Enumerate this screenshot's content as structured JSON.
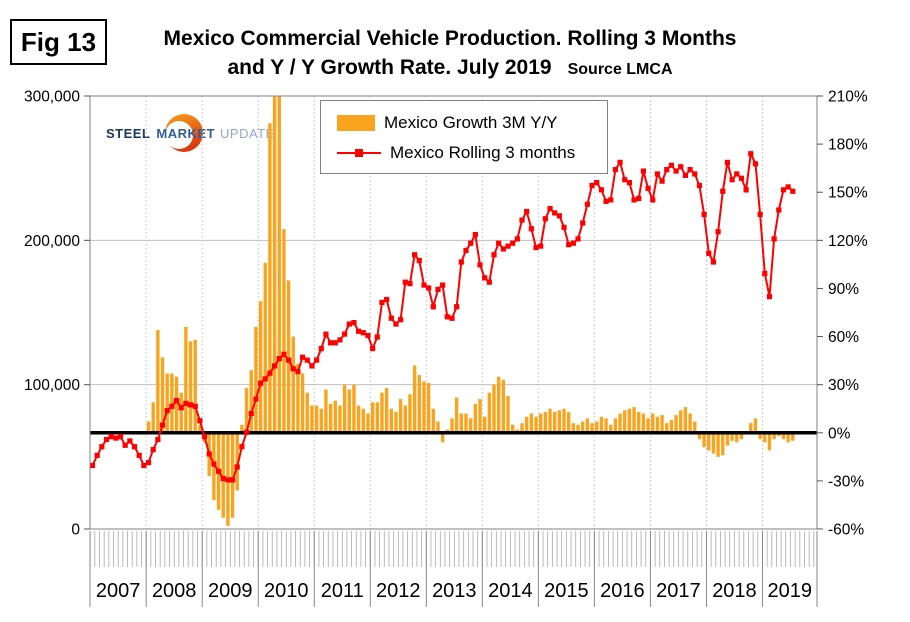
{
  "fig_label": "Fig 13",
  "title": {
    "line1": "Mexico Commercial Vehicle Production. Rolling 3 Months",
    "line2": "and Y / Y Growth Rate. July 2019",
    "source": "Source LMCA"
  },
  "logo": {
    "word1": "STEEL",
    "word2": "MARKET",
    "word3": "UPDATE"
  },
  "legend": {
    "items": [
      {
        "label": "Mexico Growth 3M Y/Y",
        "marker": "bar-swatch",
        "color": "#F9A41C"
      },
      {
        "label": "Mexico Rolling 3 months",
        "marker": "line-square",
        "color": "#FF0000"
      }
    ]
  },
  "colors": {
    "bar": "#F9A41C",
    "line": "#FF0000",
    "grid": "#BFBFBF",
    "axis": "#808080",
    "tick": "#808080",
    "zero_line": "#000000",
    "text": "#000000",
    "logo_orange": "#F9A11B",
    "logo_red": "#D93A0F"
  },
  "chart_data": {
    "type": "bar+line combo",
    "x_start": "2007-01",
    "x_end": "2019-07",
    "months_per_year": 12,
    "year_labels": [
      "2007",
      "2008",
      "2009",
      "2010",
      "2011",
      "2012",
      "2013",
      "2014",
      "2015",
      "2016",
      "2017",
      "2018",
      "2019"
    ],
    "left_axis": {
      "ticks": [
        "0",
        "100,000",
        "200,000",
        "300,000"
      ],
      "min": 0,
      "max": 300000,
      "applies_to": "Mexico Rolling 3 months (units)"
    },
    "right_axis": {
      "ticks": [
        "-60%",
        "-30%",
        "0%",
        "30%",
        "60%",
        "90%",
        "120%",
        "150%",
        "180%",
        "210%"
      ],
      "min": -60,
      "max": 210,
      "applies_to": "Mexico Growth 3M Y/Y (percent)"
    },
    "grid": {
      "horizontal_left_ticks": true,
      "vertical_year_separators": "dotted",
      "zero_line_bold": true
    },
    "legend_position": "top-center-inside",
    "series": [
      {
        "name": "Mexico Growth 3M Y/Y",
        "type": "bar",
        "axis": "right",
        "unit": "%",
        "color": "#F9A41C",
        "values": [
          null,
          null,
          null,
          null,
          null,
          null,
          null,
          null,
          null,
          null,
          null,
          null,
          7,
          19,
          64,
          47,
          37,
          37,
          35,
          25,
          66,
          57,
          58,
          5,
          -6,
          -27,
          -42,
          -48,
          -53,
          -58,
          -53,
          -36,
          5,
          28,
          39,
          66,
          82,
          106,
          193,
          213,
          213,
          127,
          95,
          60,
          43,
          37,
          25,
          17,
          17,
          15,
          27,
          18,
          20,
          17,
          30,
          27,
          30,
          17,
          15,
          12,
          19,
          19,
          25,
          28,
          15,
          13,
          21,
          17,
          24,
          42,
          36,
          32,
          31,
          15,
          7,
          -6,
          2,
          9,
          22,
          12,
          12,
          9,
          18,
          21,
          10,
          25,
          30,
          35,
          33,
          23,
          5,
          2,
          6,
          10,
          12,
          10,
          12,
          13,
          15,
          13,
          14,
          15,
          13,
          6,
          5,
          7,
          9,
          6,
          7,
          10,
          9,
          5,
          9,
          12,
          14,
          15,
          16,
          13,
          12,
          9,
          12,
          10,
          11,
          6,
          8,
          11,
          14,
          16,
          12,
          7,
          -4,
          -9,
          -11,
          -13,
          -15,
          -14,
          -8,
          -5,
          -6,
          -4,
          1,
          6,
          9,
          -4,
          -6,
          -11,
          -4,
          -2,
          -4,
          -6,
          -5
        ]
      },
      {
        "name": "Mexico Rolling 3 months",
        "type": "line",
        "axis": "left",
        "unit": "vehicles (thousands)",
        "color": "#FF0000",
        "values_thousands": [
          44,
          51,
          57,
          62,
          64,
          63,
          64,
          58,
          61,
          57,
          51,
          44,
          46,
          55,
          62,
          72,
          82,
          85,
          89,
          84,
          87,
          86,
          85,
          75,
          64,
          52,
          45,
          40,
          35,
          34,
          34,
          43,
          57,
          67,
          80,
          90,
          101,
          104,
          108,
          113,
          118,
          121,
          117,
          111,
          109,
          119,
          117,
          113,
          117,
          125,
          135,
          129,
          129,
          131,
          135,
          142,
          143,
          137,
          136,
          134,
          125,
          133,
          157,
          159,
          146,
          142,
          145,
          171,
          170,
          190,
          186,
          169,
          167,
          154,
          166,
          169,
          147,
          146,
          154,
          185,
          193,
          198,
          204,
          183,
          174,
          171,
          190,
          198,
          194,
          196,
          198,
          201,
          214,
          220,
          208,
          195,
          196,
          215,
          222,
          219,
          217,
          209,
          197,
          198,
          201,
          212,
          225,
          238,
          240,
          235,
          227,
          228,
          249,
          254,
          242,
          240,
          228,
          229,
          248,
          236,
          228,
          246,
          241,
          249,
          252,
          248,
          251,
          245,
          249,
          246,
          238,
          218,
          191,
          185,
          206,
          234,
          254,
          242,
          246,
          243,
          235,
          260,
          253,
          218,
          177,
          161,
          201,
          221,
          235,
          237,
          234
        ]
      }
    ]
  }
}
